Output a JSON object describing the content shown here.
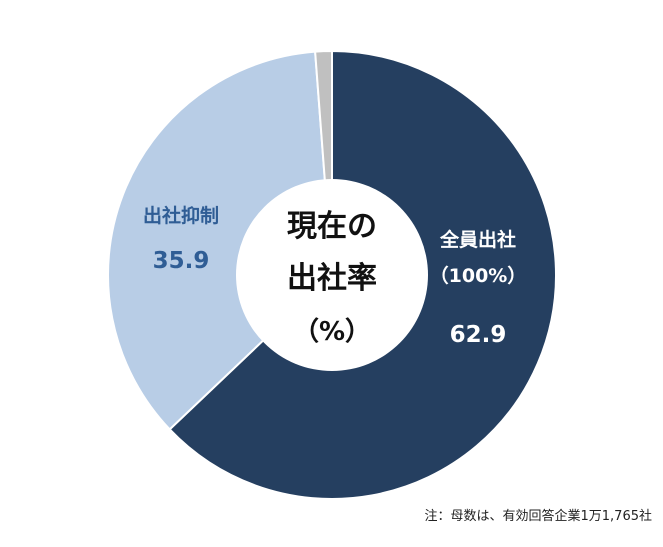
{
  "chart_data": {
    "type": "pie",
    "donut": true,
    "center_label": [
      "現在の",
      "出社率",
      "（%）"
    ],
    "slices": [
      {
        "label": "全員出社",
        "sublabel": "（100%）",
        "value": 62.9,
        "color": "#253f60",
        "label_color": "#ffffff"
      },
      {
        "label": "出社抑制",
        "sublabel": "",
        "value": 35.9,
        "color": "#b8cde6",
        "label_color": "#2f5d95"
      },
      {
        "label": "",
        "sublabel": "",
        "value": 1.2,
        "color": "#c0c0c0",
        "label_color": "#ffffff"
      }
    ],
    "note": "注：母数は、有効回答企業1万1,765社"
  }
}
